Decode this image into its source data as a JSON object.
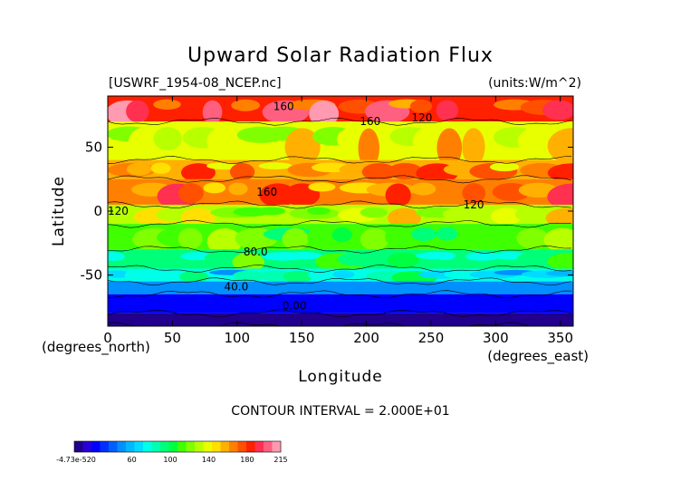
{
  "chart_data": {
    "type": "heatmap",
    "title": "Upward Solar Radiation Flux",
    "source_file": "[USWRF_1954-08_NCEP.nc]",
    "units": "(units:W/m^2)",
    "xlabel": "Longitude",
    "ylabel": "Latitude",
    "x_unit_label": "(degrees_east)",
    "y_unit_label": "(degrees_north)",
    "xlim": [
      0,
      360
    ],
    "ylim": [
      -90,
      90
    ],
    "x_ticks": [
      0,
      50,
      100,
      150,
      200,
      250,
      300,
      350
    ],
    "y_ticks": [
      -50,
      0,
      50
    ],
    "contour_interval_text": "CONTOUR INTERVAL = 2.000E+01",
    "contour_labels": [
      "160",
      "160",
      "120",
      "160",
      "120",
      "120",
      "80.0",
      "40.0",
      "0.00"
    ],
    "colorbar": {
      "min_label": "-4.73e-520",
      "tick_labels": [
        "60",
        "100",
        "140",
        "180",
        "215"
      ],
      "colors": [
        "#20008c",
        "#2800d8",
        "#0000ff",
        "#0030ff",
        "#0060ff",
        "#0090ff",
        "#00b8ff",
        "#00dcff",
        "#00ffe8",
        "#00ffb0",
        "#00ff78",
        "#00ff40",
        "#40ff00",
        "#80ff00",
        "#b8ff00",
        "#e8ff00",
        "#ffe000",
        "#ffb000",
        "#ff8000",
        "#ff5000",
        "#ff2000",
        "#ff3050",
        "#ff6080",
        "#ff9ab0"
      ]
    },
    "latitude_bands": [
      {
        "lat_range": [
          70,
          90
        ],
        "approx_value": 185
      },
      {
        "lat_range": [
          40,
          70
        ],
        "approx_value": 140
      },
      {
        "lat_range": [
          25,
          40
        ],
        "approx_value": 160
      },
      {
        "lat_range": [
          5,
          25
        ],
        "approx_value": 170
      },
      {
        "lat_range": [
          -10,
          5
        ],
        "approx_value": 130
      },
      {
        "lat_range": [
          -30,
          -10
        ],
        "approx_value": 110
      },
      {
        "lat_range": [
          -45,
          -30
        ],
        "approx_value": 95
      },
      {
        "lat_range": [
          -55,
          -45
        ],
        "approx_value": 75
      },
      {
        "lat_range": [
          -65,
          -55
        ],
        "approx_value": 50
      },
      {
        "lat_range": [
          -80,
          -65
        ],
        "approx_value": 20
      },
      {
        "lat_range": [
          -90,
          -80
        ],
        "approx_value": 0
      }
    ]
  }
}
